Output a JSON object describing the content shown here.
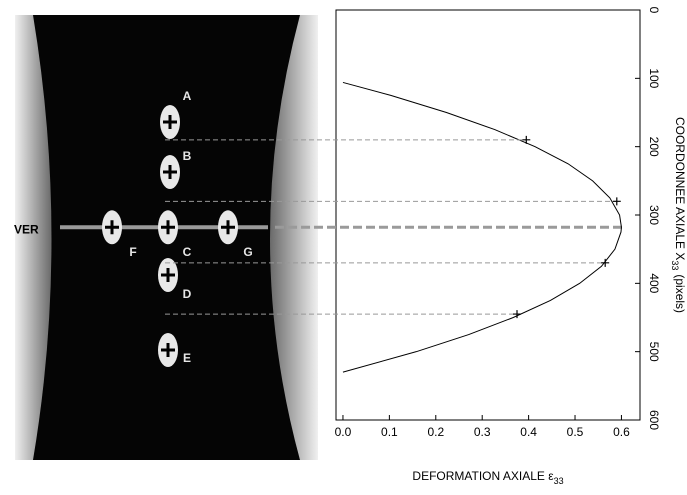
{
  "chart_data": {
    "type": "line",
    "xlabel": [
      "DEFORMATION AXIALE ε",
      "33"
    ],
    "ylabel": [
      "COORDONNEE AXIALE X",
      "33",
      "(pixels)"
    ],
    "xlim": [
      -0.015,
      0.64
    ],
    "xticks": [
      {
        "value": 0,
        "label": "0.0"
      },
      0.1,
      0.2,
      0.3,
      0.4,
      0.5,
      0.6
    ],
    "ylim": [
      0,
      600
    ],
    "yticks": [
      0,
      100,
      200,
      300,
      400,
      500,
      600
    ],
    "y_inverted": true,
    "color": "#000000",
    "curve": {
      "x": [
        0,
        0.103,
        0.223,
        0.327,
        0.414,
        0.485,
        0.538,
        0.575,
        0.596,
        0.6,
        0.599,
        0.586,
        0.557,
        0.51,
        0.447,
        0.367,
        0.271,
        0.158,
        0
      ],
      "y": [
        106,
        125,
        150,
        175,
        200,
        225,
        250,
        275,
        300,
        318,
        325,
        350,
        375,
        400,
        425,
        450,
        475,
        500,
        530
      ]
    },
    "points": {
      "x": [
        0.395,
        0.59,
        0.565,
        0.375
      ],
      "y": [
        190,
        280,
        370,
        445
      ]
    },
    "annotations": [
      "A",
      "B",
      "C",
      "D",
      "E",
      "F",
      "G",
      "VER"
    ]
  }
}
